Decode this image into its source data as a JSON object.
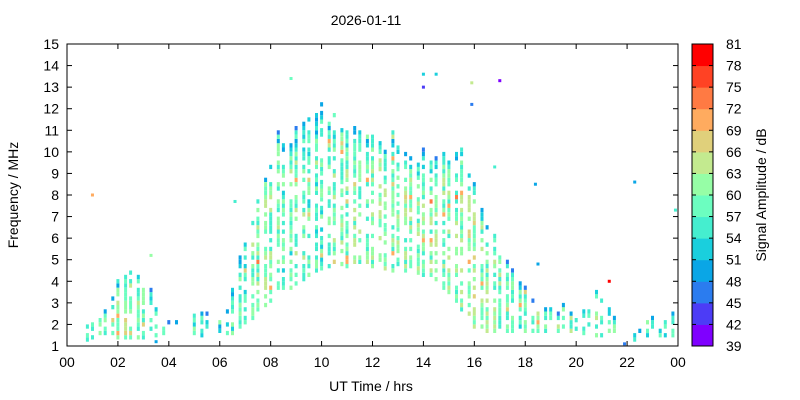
{
  "chart_data": {
    "type": "heatmap",
    "title": "2026-01-11",
    "xlabel": "UT Time / hrs",
    "ylabel": "Frequency / MHz",
    "xlim": [
      0,
      24
    ],
    "ylim": [
      1,
      15
    ],
    "xticks": [
      "00",
      "02",
      "04",
      "06",
      "08",
      "10",
      "12",
      "14",
      "16",
      "18",
      "20",
      "22",
      "00"
    ],
    "yticks": [
      "1",
      "2",
      "3",
      "4",
      "5",
      "6",
      "7",
      "8",
      "9",
      "10",
      "11",
      "12",
      "13",
      "14",
      "15"
    ],
    "grid": false,
    "colorbar": {
      "label": "Signal Amplitude / dB",
      "ticks": [
        "39",
        "42",
        "45",
        "48",
        "51",
        "54",
        "57",
        "60",
        "63",
        "66",
        "69",
        "72",
        "75",
        "78",
        "81"
      ],
      "range": [
        39,
        81
      ],
      "colors": [
        "#7f00ff",
        "#4c3cf6",
        "#2b7cef",
        "#0aa6e6",
        "#1acfdd",
        "#45eecf",
        "#6cfec0",
        "#96fea6",
        "#c3ea8f",
        "#e0d07b",
        "#ffab5f",
        "#ff7a43",
        "#ff4224",
        "#ff0000"
      ]
    },
    "columns_note_fields": [
      "time_hrs",
      "freq_min_MHz",
      "freq_max_MHz",
      "amplitude_dB"
    ],
    "columns": [
      [
        0.8,
        1.2,
        1.9,
        56
      ],
      [
        1.0,
        1.3,
        2.0,
        57
      ],
      [
        1.3,
        1.3,
        2.3,
        58
      ],
      [
        1.5,
        1.3,
        2.6,
        58
      ],
      [
        1.8,
        1.3,
        3.2,
        59
      ],
      [
        2.0,
        1.3,
        3.9,
        60
      ],
      [
        2.3,
        1.3,
        4.1,
        61
      ],
      [
        2.5,
        1.3,
        4.4,
        60
      ],
      [
        2.8,
        1.3,
        4.2,
        59
      ],
      [
        3.0,
        1.3,
        4.0,
        58
      ],
      [
        3.3,
        1.3,
        3.6,
        57
      ],
      [
        3.5,
        1.4,
        2.6,
        56
      ],
      [
        3.8,
        1.5,
        2.1,
        56
      ],
      [
        4.0,
        1.6,
        2.0,
        55
      ],
      [
        4.3,
        1.6,
        2.0,
        55
      ],
      [
        5.0,
        1.5,
        2.3,
        56
      ],
      [
        5.3,
        1.4,
        2.5,
        56
      ],
      [
        5.5,
        1.4,
        2.4,
        55
      ],
      [
        5.8,
        1.4,
        2.4,
        56
      ],
      [
        6.0,
        1.4,
        2.4,
        55
      ],
      [
        6.3,
        1.5,
        2.6,
        56
      ],
      [
        6.5,
        1.5,
        3.5,
        57
      ],
      [
        6.8,
        1.8,
        5.0,
        58
      ],
      [
        7.0,
        2.0,
        5.8,
        58
      ],
      [
        7.3,
        2.2,
        6.6,
        59
      ],
      [
        7.5,
        2.6,
        7.8,
        60
      ],
      [
        7.8,
        2.8,
        8.6,
        61
      ],
      [
        8.0,
        3.0,
        9.6,
        60
      ],
      [
        8.3,
        3.2,
        11.3,
        58
      ],
      [
        8.5,
        3.4,
        10.2,
        58
      ],
      [
        8.8,
        3.6,
        10.7,
        58
      ],
      [
        9.0,
        3.8,
        11.0,
        59
      ],
      [
        9.3,
        4.0,
        11.3,
        59
      ],
      [
        9.5,
        4.0,
        11.4,
        58
      ],
      [
        9.8,
        4.2,
        11.6,
        58
      ],
      [
        10.0,
        4.3,
        12.2,
        57
      ],
      [
        10.3,
        4.4,
        11.8,
        58
      ],
      [
        10.5,
        4.4,
        11.6,
        59
      ],
      [
        10.8,
        4.5,
        11.4,
        59
      ],
      [
        11.0,
        4.6,
        11.1,
        59
      ],
      [
        11.3,
        4.6,
        11.0,
        60
      ],
      [
        11.5,
        4.6,
        10.8,
        59
      ],
      [
        11.8,
        4.6,
        10.6,
        60
      ],
      [
        12.0,
        4.6,
        10.6,
        60
      ],
      [
        12.3,
        4.5,
        10.4,
        60
      ],
      [
        12.5,
        4.5,
        10.3,
        60
      ],
      [
        12.8,
        4.4,
        10.8,
        59
      ],
      [
        13.0,
        4.5,
        10.1,
        59
      ],
      [
        13.3,
        4.4,
        9.8,
        60
      ],
      [
        13.5,
        4.4,
        9.6,
        60
      ],
      [
        13.8,
        4.3,
        9.4,
        60
      ],
      [
        14.0,
        4.2,
        10.0,
        60
      ],
      [
        14.3,
        4.2,
        9.4,
        60
      ],
      [
        14.5,
        4.0,
        9.6,
        60
      ],
      [
        14.8,
        3.6,
        10.0,
        61
      ],
      [
        15.0,
        3.4,
        9.4,
        61
      ],
      [
        15.3,
        3.0,
        9.8,
        60
      ],
      [
        15.5,
        2.4,
        10.2,
        61
      ],
      [
        15.8,
        2.0,
        8.8,
        62
      ],
      [
        16.0,
        1.8,
        8.4,
        62
      ],
      [
        16.3,
        1.6,
        7.2,
        61
      ],
      [
        16.5,
        1.6,
        6.4,
        61
      ],
      [
        16.8,
        1.6,
        6.2,
        60
      ],
      [
        17.0,
        1.6,
        5.5,
        59
      ],
      [
        17.3,
        1.6,
        4.8,
        58
      ],
      [
        17.5,
        1.6,
        4.5,
        58
      ],
      [
        17.8,
        1.6,
        4.0,
        58
      ],
      [
        18.0,
        1.6,
        3.6,
        59
      ],
      [
        18.3,
        1.6,
        3.0,
        59
      ],
      [
        18.5,
        1.6,
        2.8,
        60
      ],
      [
        18.8,
        1.6,
        2.6,
        60
      ],
      [
        19.0,
        1.6,
        2.6,
        60
      ],
      [
        19.3,
        1.6,
        2.4,
        60
      ],
      [
        19.5,
        1.6,
        2.8,
        60
      ],
      [
        19.8,
        1.6,
        2.4,
        60
      ],
      [
        20.0,
        1.5,
        2.4,
        59
      ],
      [
        20.3,
        1.5,
        2.6,
        59
      ],
      [
        20.5,
        1.5,
        2.8,
        59
      ],
      [
        20.8,
        1.4,
        3.4,
        60
      ],
      [
        21.0,
        1.4,
        3.0,
        58
      ],
      [
        21.3,
        1.4,
        2.6,
        58
      ],
      [
        21.5,
        1.4,
        2.2,
        57
      ],
      [
        22.3,
        1.2,
        1.6,
        54
      ],
      [
        22.5,
        1.4,
        1.8,
        55
      ],
      [
        22.8,
        1.4,
        2.0,
        56
      ],
      [
        23.0,
        1.4,
        2.2,
        56
      ],
      [
        23.3,
        1.4,
        2.2,
        55
      ],
      [
        23.5,
        1.4,
        2.2,
        55
      ],
      [
        23.8,
        1.4,
        2.4,
        56
      ]
    ],
    "points": [
      {
        "t": 1.0,
        "f": 8.0,
        "a": 70
      },
      {
        "t": 3.3,
        "f": 5.2,
        "a": 60
      },
      {
        "t": 6.6,
        "f": 7.7,
        "a": 56
      },
      {
        "t": 8.8,
        "f": 13.4,
        "a": 57
      },
      {
        "t": 14.0,
        "f": 13.6,
        "a": 52
      },
      {
        "t": 14.0,
        "f": 13.0,
        "a": 42
      },
      {
        "t": 14.5,
        "f": 13.6,
        "a": 52
      },
      {
        "t": 15.9,
        "f": 13.2,
        "a": 63
      },
      {
        "t": 15.9,
        "f": 12.2,
        "a": 47
      },
      {
        "t": 17.0,
        "f": 13.3,
        "a": 40
      },
      {
        "t": 16.8,
        "f": 9.3,
        "a": 55
      },
      {
        "t": 18.4,
        "f": 8.5,
        "a": 48
      },
      {
        "t": 18.5,
        "f": 4.8,
        "a": 48
      },
      {
        "t": 21.3,
        "f": 4.0,
        "a": 79
      },
      {
        "t": 22.3,
        "f": 8.6,
        "a": 48
      },
      {
        "t": 23.9,
        "f": 7.3,
        "a": 56
      },
      {
        "t": 3.5,
        "f": 1.2,
        "a": 48
      },
      {
        "t": 21.9,
        "f": 1.1,
        "a": 45
      }
    ]
  }
}
